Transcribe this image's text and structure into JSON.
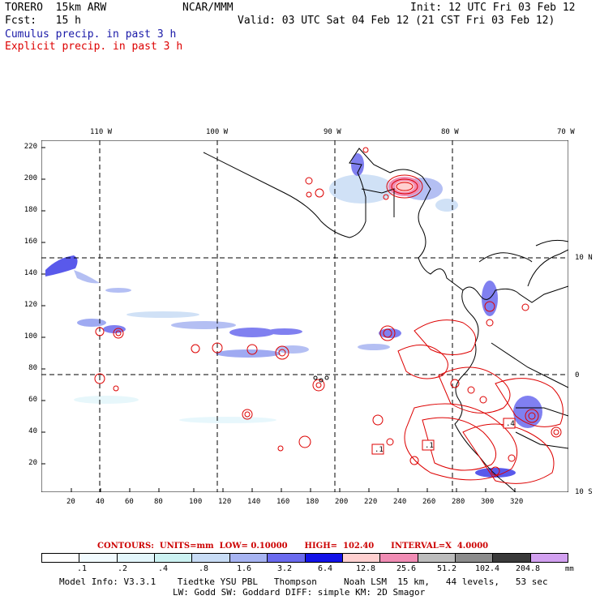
{
  "header": {
    "model": "TORERO  15km ARW",
    "org": "NCAR/MMM",
    "init": "Init: 12 UTC Fri 03 Feb 12",
    "fcst": "Fcst:   15 h",
    "valid": "Valid: 03 UTC Sat 04 Feb 12 (21 CST Fri 03 Feb 12)",
    "cumulus": "Cumulus precip. in past 3 h",
    "explicit": "Explicit precip. in past 3 h",
    "cumulus_color": "#1a1aa8",
    "explicit_color": "#dd0000"
  },
  "map": {
    "lon_labels": [
      "110 W",
      "100 W",
      "90 W",
      "80 W",
      "70 W"
    ],
    "lat_labels": [
      "10 N",
      "0",
      "10 S"
    ],
    "y_ticks": [
      "220",
      "200",
      "180",
      "160",
      "140",
      "120",
      "100",
      "80",
      "60",
      "40",
      "20"
    ],
    "x_ticks": [
      "20",
      "40",
      "60",
      "80",
      "100",
      "120",
      "140",
      "160",
      "180",
      "200",
      "220",
      "240",
      "260",
      "280",
      "300",
      "320"
    ],
    "contour_boxes": [
      ".1",
      ".1",
      ".4"
    ]
  },
  "legend": {
    "contours_text": "CONTOURS:  UNITS=mm  LOW= 0.10000      HIGH=  102.40      INTERVAL=X  4.0000",
    "colors": [
      "#ffffff",
      "#f2fbff",
      "#e3f6fb",
      "#ccf2f2",
      "#c8dcf5",
      "#a7b4f2",
      "#6a6aee",
      "#1212e8",
      "#ffd0d0",
      "#f08cb4",
      "#bcbcbc",
      "#8c8c8c",
      "#3a3a3a",
      "#d2a0f0"
    ],
    "labels": [
      ".1",
      ".2",
      ".4",
      ".8",
      "1.6",
      "3.2",
      "6.4",
      "12.8",
      "25.6",
      "51.2",
      "102.4",
      "204.8"
    ],
    "units": "mm"
  },
  "footer": {
    "line1": "Model Info: V3.3.1    Tiedtke YSU PBL   Thompson     Noah LSM  15 km,   44 levels,   53 sec",
    "line2": "LW: Godd SW: Goddard DIFF: simple KM: 2D Smagor"
  }
}
